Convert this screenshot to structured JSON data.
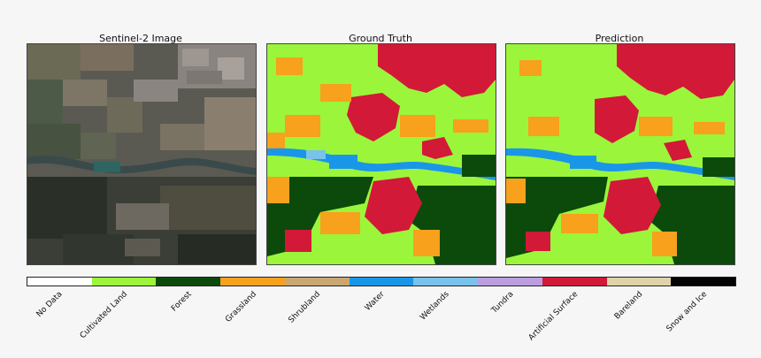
{
  "panels": {
    "sentinel_title": "Sentinel-2 Image",
    "ground_truth_title": "Ground Truth",
    "prediction_title": "Prediction"
  },
  "legend": {
    "classes": [
      {
        "label": "No Data",
        "color": "#ffffff"
      },
      {
        "label": "Cultivated Land",
        "color": "#9bf53b"
      },
      {
        "label": "Forest",
        "color": "#0b4a0b"
      },
      {
        "label": "Grassland",
        "color": "#f7a11c"
      },
      {
        "label": "Shrubland",
        "color": "#c9a772"
      },
      {
        "label": "Water",
        "color": "#1a96e8"
      },
      {
        "label": "Wetlands",
        "color": "#78c2eb"
      },
      {
        "label": "Tundra",
        "color": "#bb9de0"
      },
      {
        "label": "Artificial Surface",
        "color": "#d21938"
      },
      {
        "label": "Bareland",
        "color": "#dfd3aa"
      },
      {
        "label": "Snow and Ice",
        "color": "#050505"
      }
    ]
  }
}
